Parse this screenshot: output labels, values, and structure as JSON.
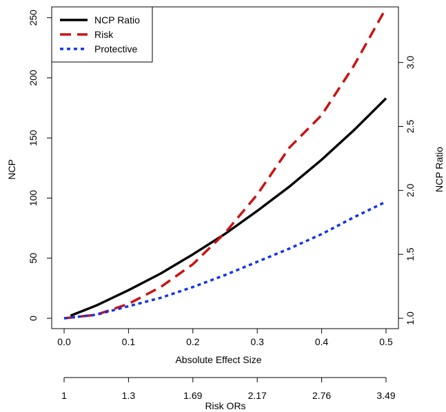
{
  "chart_data": {
    "type": "line",
    "xlabel": "Absolute Effect Size",
    "ylabel": "NCP",
    "ylabel_right": "NCP Ratio",
    "secondary_xlabel": "Risk ORs",
    "xlim": [
      0.0,
      0.5
    ],
    "ylim": [
      0,
      255
    ],
    "ylim_right": [
      1.0,
      3.3
    ],
    "x_ticks": [
      "0.0",
      "0.1",
      "0.2",
      "0.3",
      "0.4",
      "0.5"
    ],
    "y_ticks": [
      "0",
      "50",
      "100",
      "150",
      "200",
      "250"
    ],
    "y_right_ticks": [
      "1.0",
      "1.5",
      "2.0",
      "2.5",
      "3.0"
    ],
    "secondary_x_ticks": [
      "1",
      "1.3",
      "1.69",
      "2.17",
      "2.76",
      "3.49"
    ],
    "legend_position": "top-left",
    "grid": false,
    "series": [
      {
        "name": "NCP Ratio",
        "axis": "right",
        "color": "#000000",
        "style": "solid",
        "x": [
          0.01,
          0.05,
          0.1,
          0.15,
          0.2,
          0.25,
          0.3,
          0.35,
          0.4,
          0.45,
          0.5
        ],
        "y": [
          1.02,
          1.1,
          1.22,
          1.35,
          1.5,
          1.66,
          1.84,
          2.03,
          2.24,
          2.47,
          2.72
        ]
      },
      {
        "name": "Risk",
        "axis": "left",
        "color": "#cc1111",
        "style": "dashed",
        "x": [
          0.0,
          0.05,
          0.1,
          0.15,
          0.2,
          0.25,
          0.3,
          0.35,
          0.4,
          0.45,
          0.5
        ],
        "y": [
          0,
          3,
          12,
          26,
          45,
          71,
          103,
          142,
          169,
          210,
          258
        ]
      },
      {
        "name": "Protective",
        "axis": "left",
        "color": "#1133ee",
        "style": "dotted",
        "x": [
          0.0,
          0.05,
          0.1,
          0.15,
          0.2,
          0.25,
          0.3,
          0.35,
          0.4,
          0.45,
          0.5
        ],
        "y": [
          0,
          3,
          10,
          17,
          26,
          36,
          47,
          58,
          70,
          84,
          97
        ]
      }
    ]
  }
}
